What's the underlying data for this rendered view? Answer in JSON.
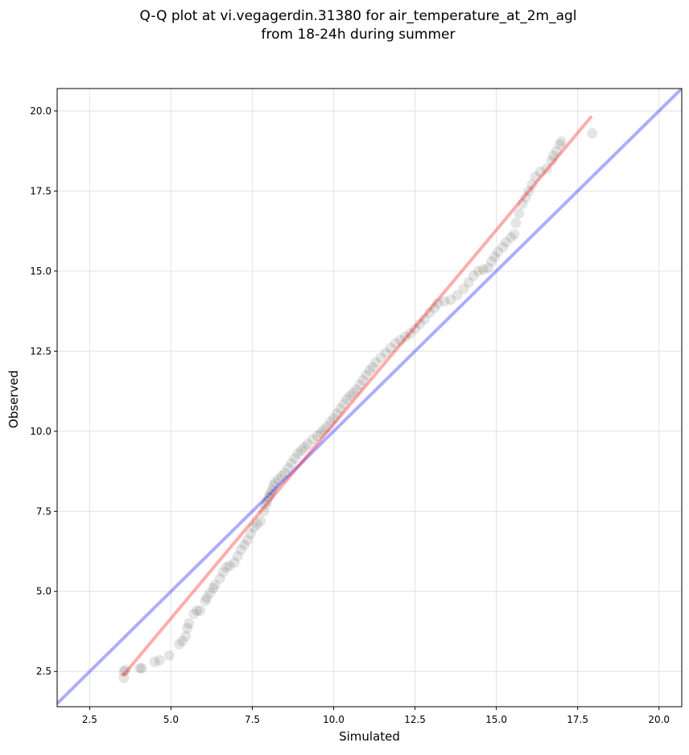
{
  "chart_data": {
    "type": "scatter",
    "title": [
      "Q-Q plot at vi.vegagerdin.31380 for air_temperature_at_2m_agl",
      "from 18-24h during summer"
    ],
    "xlabel": "Simulated",
    "ylabel": "Observed",
    "xlim": [
      1.5,
      20.7
    ],
    "ylim": [
      1.4,
      20.7
    ],
    "xticks": [
      2.5,
      5.0,
      7.5,
      10.0,
      12.5,
      15.0,
      17.5,
      20.0
    ],
    "yticks": [
      2.5,
      5.0,
      7.5,
      10.0,
      12.5,
      15.0,
      17.5,
      20.0
    ],
    "xtick_labels": [
      "2.5",
      "5.0",
      "7.5",
      "10.0",
      "12.5",
      "15.0",
      "17.5",
      "20.0"
    ],
    "ytick_labels": [
      "2.5",
      "5.0",
      "7.5",
      "10.0",
      "12.5",
      "15.0",
      "17.5",
      "20.0"
    ],
    "grid": true,
    "reference_line": {
      "color": "#0000ff",
      "alpha": 0.32,
      "points": [
        [
          1.5,
          1.5
        ],
        [
          20.7,
          20.7
        ]
      ]
    },
    "fit_line": {
      "color": "#ff0000",
      "alpha": 0.32,
      "points": [
        [
          3.55,
          2.4
        ],
        [
          17.9,
          19.8
        ]
      ]
    },
    "points_color": "#000000",
    "points": [
      [
        3.55,
        2.3
      ],
      [
        3.55,
        2.5
      ],
      [
        3.6,
        2.55
      ],
      [
        4.05,
        2.6
      ],
      [
        4.1,
        2.6
      ],
      [
        4.5,
        2.8
      ],
      [
        4.65,
        2.85
      ],
      [
        4.95,
        3.0
      ],
      [
        5.25,
        3.35
      ],
      [
        5.35,
        3.45
      ],
      [
        5.45,
        3.6
      ],
      [
        5.5,
        3.85
      ],
      [
        5.55,
        4.0
      ],
      [
        5.7,
        4.3
      ],
      [
        5.8,
        4.4
      ],
      [
        5.9,
        4.4
      ],
      [
        6.05,
        4.7
      ],
      [
        6.1,
        4.8
      ],
      [
        6.2,
        4.95
      ],
      [
        6.3,
        5.1
      ],
      [
        6.35,
        5.2
      ],
      [
        6.5,
        5.4
      ],
      [
        6.6,
        5.6
      ],
      [
        6.7,
        5.75
      ],
      [
        6.8,
        5.8
      ],
      [
        6.95,
        5.9
      ],
      [
        7.05,
        6.1
      ],
      [
        7.15,
        6.3
      ],
      [
        7.25,
        6.45
      ],
      [
        7.35,
        6.6
      ],
      [
        7.45,
        6.8
      ],
      [
        7.55,
        7.0
      ],
      [
        7.65,
        7.1
      ],
      [
        7.75,
        7.2
      ],
      [
        7.85,
        7.5
      ],
      [
        7.9,
        7.7
      ],
      [
        7.95,
        7.8
      ],
      [
        8.0,
        7.95
      ],
      [
        8.05,
        8.05
      ],
      [
        8.1,
        8.15
      ],
      [
        8.15,
        8.3
      ],
      [
        8.2,
        8.4
      ],
      [
        8.3,
        8.5
      ],
      [
        8.4,
        8.6
      ],
      [
        8.5,
        8.7
      ],
      [
        8.6,
        8.85
      ],
      [
        8.7,
        9.0
      ],
      [
        8.8,
        9.15
      ],
      [
        8.9,
        9.3
      ],
      [
        9.0,
        9.4
      ],
      [
        9.1,
        9.5
      ],
      [
        9.2,
        9.6
      ],
      [
        9.35,
        9.75
      ],
      [
        9.5,
        9.85
      ],
      [
        9.6,
        9.95
      ],
      [
        9.7,
        10.05
      ],
      [
        9.8,
        10.15
      ],
      [
        9.9,
        10.3
      ],
      [
        10.0,
        10.4
      ],
      [
        10.1,
        10.55
      ],
      [
        10.2,
        10.7
      ],
      [
        10.3,
        10.85
      ],
      [
        10.4,
        11.0
      ],
      [
        10.5,
        11.1
      ],
      [
        10.6,
        11.2
      ],
      [
        10.7,
        11.3
      ],
      [
        10.8,
        11.45
      ],
      [
        10.9,
        11.6
      ],
      [
        11.0,
        11.75
      ],
      [
        11.1,
        11.9
      ],
      [
        11.2,
        12.0
      ],
      [
        11.3,
        12.15
      ],
      [
        11.45,
        12.3
      ],
      [
        11.6,
        12.45
      ],
      [
        11.75,
        12.6
      ],
      [
        11.9,
        12.75
      ],
      [
        12.05,
        12.85
      ],
      [
        12.2,
        12.95
      ],
      [
        12.35,
        13.05
      ],
      [
        12.5,
        13.2
      ],
      [
        12.65,
        13.35
      ],
      [
        12.8,
        13.5
      ],
      [
        12.95,
        13.7
      ],
      [
        13.1,
        13.85
      ],
      [
        13.2,
        14.0
      ],
      [
        13.4,
        14.05
      ],
      [
        13.6,
        14.1
      ],
      [
        13.8,
        14.25
      ],
      [
        14.0,
        14.45
      ],
      [
        14.15,
        14.65
      ],
      [
        14.3,
        14.85
      ],
      [
        14.45,
        15.0
      ],
      [
        14.6,
        15.05
      ],
      [
        14.75,
        15.1
      ],
      [
        14.85,
        15.3
      ],
      [
        14.95,
        15.45
      ],
      [
        15.05,
        15.6
      ],
      [
        15.2,
        15.75
      ],
      [
        15.3,
        15.9
      ],
      [
        15.45,
        16.05
      ],
      [
        15.55,
        16.15
      ],
      [
        15.6,
        16.5
      ],
      [
        15.7,
        16.8
      ],
      [
        15.8,
        17.1
      ],
      [
        15.9,
        17.3
      ],
      [
        16.0,
        17.5
      ],
      [
        16.1,
        17.7
      ],
      [
        16.2,
        17.95
      ],
      [
        16.35,
        18.1
      ],
      [
        16.55,
        18.2
      ],
      [
        16.7,
        18.45
      ],
      [
        16.75,
        18.6
      ],
      [
        16.85,
        18.75
      ],
      [
        16.95,
        18.95
      ],
      [
        17.0,
        19.05
      ],
      [
        17.95,
        19.3
      ]
    ]
  }
}
